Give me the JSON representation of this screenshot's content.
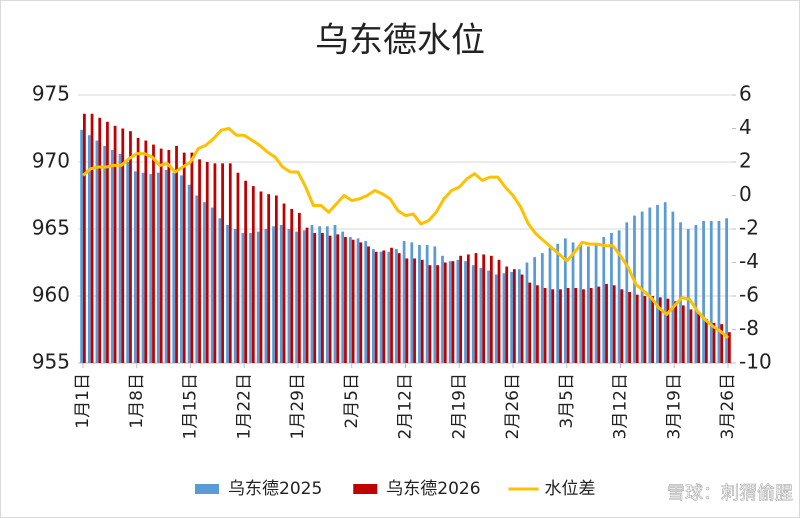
{
  "chart_data": {
    "type": "bar_line",
    "title": "乌东德水位",
    "categories": [
      "1月1日",
      null,
      null,
      null,
      null,
      null,
      null,
      "1月8日",
      null,
      null,
      null,
      null,
      null,
      null,
      "1月15日",
      null,
      null,
      null,
      null,
      null,
      null,
      "1月22日",
      null,
      null,
      null,
      null,
      null,
      null,
      "1月29日",
      null,
      null,
      null,
      null,
      null,
      null,
      "2月5日",
      null,
      null,
      null,
      null,
      null,
      null,
      "2月12日",
      null,
      null,
      null,
      null,
      null,
      null,
      "2月19日",
      null,
      null,
      null,
      null,
      null,
      null,
      "2月26日",
      null,
      null,
      null,
      null,
      null,
      null,
      "3月5日",
      null,
      null,
      null,
      null,
      null,
      null,
      "3月12日",
      null,
      null,
      null,
      null,
      null,
      null,
      "3月19日",
      null,
      null,
      null,
      null,
      null,
      null,
      "3月26日"
    ],
    "series": [
      {
        "name": "乌东德2025",
        "color": "#5b9bd5",
        "kind": "bar",
        "values": [
          972.4,
          972.0,
          971.6,
          971.2,
          970.9,
          970.6,
          970.0,
          969.3,
          969.2,
          969.1,
          969.2,
          969.4,
          969.2,
          969.0,
          968.3,
          967.5,
          967.0,
          966.6,
          965.8,
          965.3,
          965.0,
          964.7,
          964.7,
          964.8,
          965.0,
          965.2,
          965.3,
          965.0,
          964.8,
          964.9,
          965.3,
          965.2,
          965.2,
          965.3,
          964.8,
          964.4,
          964.3,
          964.1,
          963.5,
          963.3,
          963.3,
          963.5,
          964.1,
          964.0,
          963.8,
          963.8,
          963.7,
          963.0,
          962.6,
          962.7,
          962.6,
          962.3,
          962.1,
          961.9,
          961.6,
          961.7,
          961.8,
          962.0,
          962.5,
          962.9,
          963.2,
          963.6,
          963.9,
          964.3,
          964.0,
          963.9,
          963.7,
          963.9,
          964.4,
          964.7,
          964.9,
          965.5,
          966.0,
          966.3,
          966.6,
          966.8,
          967.0,
          966.3,
          965.5,
          965.0,
          965.3,
          965.6,
          965.6,
          965.6,
          965.8
        ]
      },
      {
        "name": "乌东德2026",
        "color": "#c00000",
        "kind": "bar",
        "values": [
          973.6,
          973.6,
          973.3,
          973.0,
          972.7,
          972.5,
          972.3,
          971.8,
          971.6,
          971.3,
          971.0,
          970.9,
          971.2,
          970.7,
          970.7,
          970.2,
          970.0,
          969.9,
          969.9,
          969.9,
          969.2,
          968.6,
          968.2,
          967.8,
          967.6,
          967.5,
          966.9,
          966.5,
          966.2,
          965.1,
          964.7,
          964.7,
          964.5,
          964.6,
          964.4,
          964.2,
          964.0,
          963.7,
          963.3,
          963.4,
          963.6,
          963.2,
          962.8,
          962.8,
          962.7,
          962.3,
          962.3,
          962.5,
          962.6,
          963.0,
          963.1,
          963.2,
          963.1,
          963.0,
          962.7,
          962.2,
          962.0,
          961.6,
          961.0,
          960.8,
          960.6,
          960.5,
          960.5,
          960.6,
          960.6,
          960.5,
          960.6,
          960.7,
          960.9,
          960.8,
          960.5,
          960.3,
          960.1,
          960.0,
          960.0,
          959.9,
          959.8,
          959.6,
          959.3,
          959.0,
          958.7,
          958.3,
          958.0,
          957.9,
          957.3
        ]
      },
      {
        "name": "水位差",
        "color": "#ffc000",
        "kind": "line",
        "axis": "y2",
        "values": [
          1.2,
          1.6,
          1.7,
          1.7,
          1.8,
          1.8,
          2.2,
          2.5,
          2.5,
          2.3,
          1.8,
          1.9,
          1.4,
          1.7,
          2.0,
          2.8,
          3.0,
          3.4,
          3.9,
          4.0,
          3.6,
          3.6,
          3.3,
          3.0,
          2.6,
          2.3,
          1.7,
          1.4,
          1.4,
          0.5,
          -0.6,
          -0.6,
          -1.0,
          -0.5,
          0.0,
          -0.3,
          -0.2,
          0.0,
          0.3,
          0.1,
          -0.2,
          -0.9,
          -1.2,
          -1.1,
          -1.7,
          -1.5,
          -1.0,
          -0.2,
          0.3,
          0.5,
          1.0,
          1.3,
          0.9,
          1.1,
          1.1,
          0.5,
          0.0,
          -0.7,
          -1.7,
          -2.3,
          -2.7,
          -3.1,
          -3.5,
          -3.9,
          -3.4,
          -2.8,
          -2.9,
          -2.9,
          -3.0,
          -3.0,
          -3.6,
          -4.3,
          -5.3,
          -5.7,
          -6.1,
          -6.7,
          -7.1,
          -6.6,
          -6.1,
          -6.2,
          -6.9,
          -7.4,
          -7.8,
          -8.1,
          -8.5
        ]
      }
    ],
    "ylim": [
      955,
      975
    ],
    "yticks": [
      955,
      960,
      965,
      970,
      975
    ],
    "y2lim": [
      -10,
      6
    ],
    "y2ticks": [
      -10,
      -8,
      -6,
      -4,
      -2,
      0,
      2,
      4,
      6
    ],
    "grid": true,
    "legend": "bottom",
    "watermark": "雪球：刺猬偷腥"
  }
}
